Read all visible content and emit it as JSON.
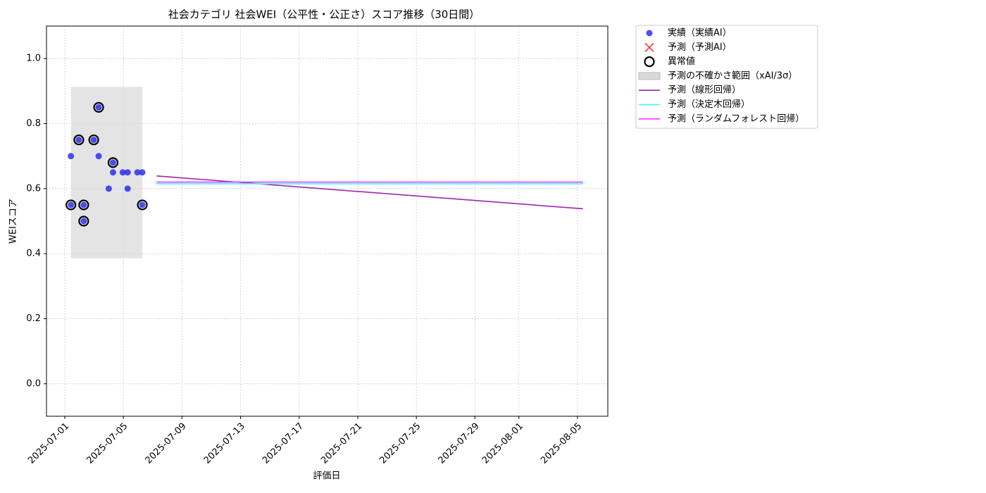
{
  "chart_data": {
    "type": "line",
    "title": "社会カテゴリ 社会WEI（公平性・公正さ）スコア推移（30日間）",
    "x_label": "評価日",
    "y_label": "WEIスコア",
    "xlim": [
      "2025-06-29T18:00",
      "2025-08-07T01:40"
    ],
    "xticks": [
      "2025-07-01",
      "2025-07-05",
      "2025-07-09",
      "2025-07-13",
      "2025-07-17",
      "2025-07-21",
      "2025-07-25",
      "2025-07-29",
      "2025-08-01",
      "2025-08-05"
    ],
    "ylim": [
      -0.1,
      1.1
    ],
    "yticks": [
      {
        "value": 0,
        "label": "0.0"
      },
      0.2,
      0.4,
      0.6,
      0.8,
      {
        "value": 1,
        "label": "1.0"
      }
    ],
    "grid": true,
    "legend": "outside-upper-right",
    "series": [
      {
        "name": "実績（実績AI）",
        "marker": "dot",
        "color": "#2222ee",
        "x": [
          "2025-07-01T10:00",
          "2025-07-01T10:00",
          "2025-07-01T23:00",
          "2025-07-02T07:00",
          "2025-07-02T07:00",
          "2025-07-02T23:30",
          "2025-07-03T07:30",
          "2025-07-03T07:30",
          "2025-07-04T00:00",
          "2025-07-04T07:00",
          "2025-07-04T07:00",
          "2025-07-04T23:00",
          "2025-07-05T07:00",
          "2025-07-05T07:00",
          "2025-07-05T23:00",
          "2025-07-06T07:00",
          "2025-07-06T07:00"
        ],
        "values": [
          0.7,
          0.55,
          0.75,
          0.55,
          0.5,
          0.75,
          0.85,
          0.7,
          0.6,
          0.65,
          0.68,
          0.65,
          0.65,
          0.6,
          0.65,
          0.65,
          0.55
        ]
      },
      {
        "name": "予測（予測AI）",
        "marker": "cross",
        "color": "#ff3333",
        "x": [],
        "values": []
      },
      {
        "name": "異常値",
        "marker": "ring",
        "color": "#000000",
        "x": [
          "2025-07-01T10:00",
          "2025-07-01T23:00",
          "2025-07-02T07:00",
          "2025-07-02T07:00",
          "2025-07-02T23:30",
          "2025-07-03T07:30",
          "2025-07-04T07:00",
          "2025-07-06T07:00"
        ],
        "values": [
          0.55,
          0.75,
          0.55,
          0.5,
          0.75,
          0.85,
          0.68,
          0.55
        ]
      },
      {
        "name": "予測の不確かさ範囲（xAI/3σ）",
        "marker": "band",
        "color": "#d9d9d9",
        "x": [
          "2025-07-01T10:00",
          "2025-07-06T07:00"
        ],
        "lower": [
          0.386,
          0.386
        ],
        "upper": [
          0.913,
          0.913
        ]
      },
      {
        "name": "予測（線形回帰）",
        "marker": "line",
        "color": "#9a2aa8",
        "x": [
          "2025-07-07T06:30",
          "2025-08-05T09:00"
        ],
        "values": [
          0.639,
          0.538
        ]
      },
      {
        "name": "予測（決定木回帰）",
        "marker": "line",
        "color": "#33ffff",
        "x": [
          "2025-07-07T06:30",
          "2025-08-05T09:00"
        ],
        "values": [
          0.615,
          0.615
        ]
      },
      {
        "name": "予測（ランダムフォレスト回帰）",
        "marker": "line",
        "color": "#ff33ff",
        "x": [
          "2025-07-07T06:30",
          "2025-08-05T09:00"
        ],
        "values": [
          0.62,
          0.62
        ]
      }
    ]
  }
}
